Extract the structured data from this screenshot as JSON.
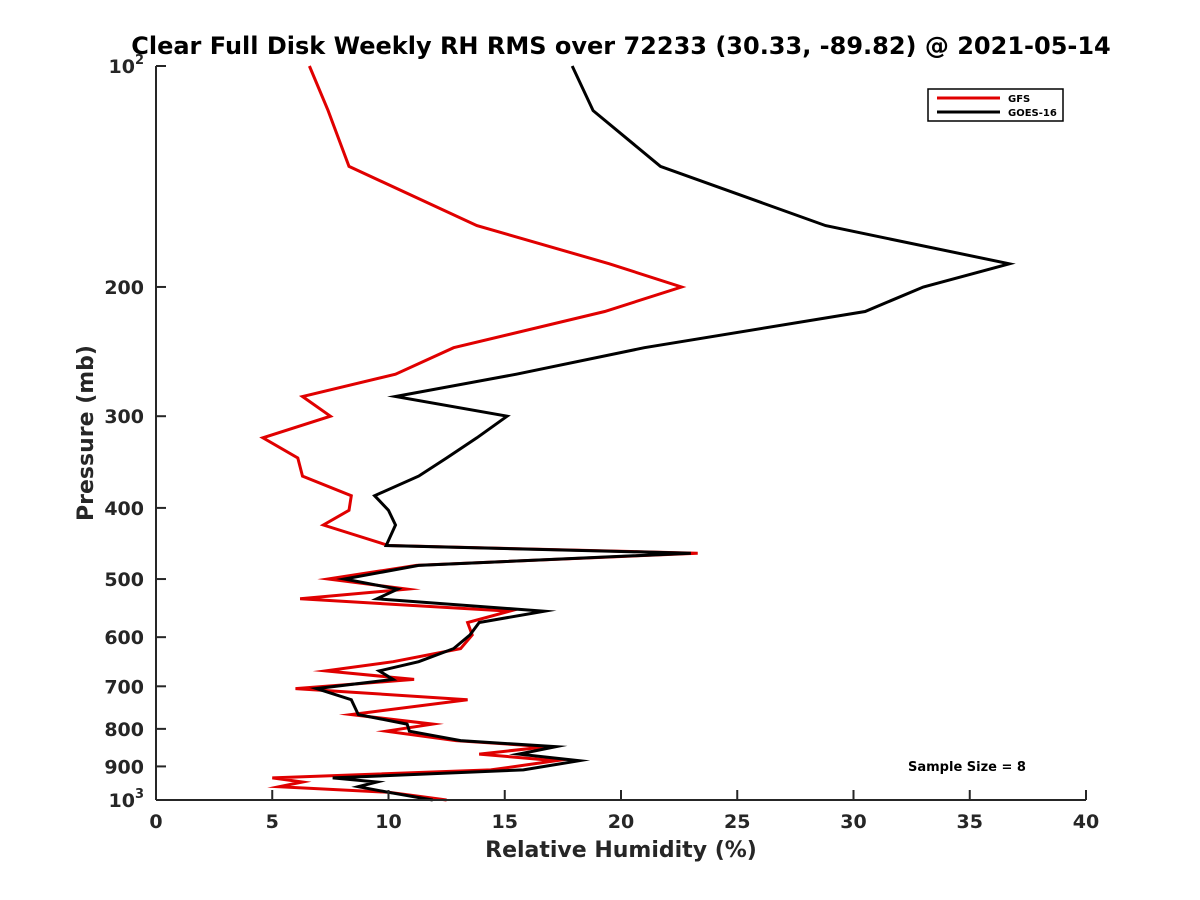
{
  "chart_data": {
    "type": "line",
    "title": "Clear Full Disk Weekly RH RMS over 72233 (30.33, -89.82) @ 2021-05-14",
    "xlabel": "Relative Humidity (%)",
    "ylabel": "Pressure (mb)",
    "xlim": [
      0,
      40
    ],
    "ylim": [
      100,
      1000
    ],
    "y_scale": "log",
    "y_reversed": true,
    "x_ticks": [
      0,
      5,
      10,
      15,
      20,
      25,
      30,
      35,
      40
    ],
    "y_ticks": [
      {
        "value": 100,
        "label": "10",
        "sup": "2"
      },
      {
        "value": 200,
        "label": "200"
      },
      {
        "value": 300,
        "label": "300"
      },
      {
        "value": 400,
        "label": "400"
      },
      {
        "value": 500,
        "label": "500"
      },
      {
        "value": 600,
        "label": "600"
      },
      {
        "value": 700,
        "label": "700"
      },
      {
        "value": 800,
        "label": "800"
      },
      {
        "value": 900,
        "label": "900"
      },
      {
        "value": 1000,
        "label": "10",
        "sup": "3"
      }
    ],
    "legend_position": "top-right",
    "annotation": "Sample Size = 8",
    "series": [
      {
        "name": "GFS",
        "color": "#e00000",
        "points": [
          [
            6.6,
            100
          ],
          [
            7.4,
            115
          ],
          [
            8.3,
            137
          ],
          [
            13.8,
            165
          ],
          [
            19.5,
            186
          ],
          [
            22.6,
            200
          ],
          [
            19.3,
            216
          ],
          [
            12.8,
            242
          ],
          [
            10.3,
            263
          ],
          [
            6.3,
            282
          ],
          [
            7.5,
            300
          ],
          [
            4.6,
            321
          ],
          [
            6.1,
            342
          ],
          [
            6.3,
            362
          ],
          [
            8.4,
            385
          ],
          [
            8.3,
            403
          ],
          [
            7.2,
            422
          ],
          [
            10.0,
            450
          ],
          [
            23.3,
            461
          ],
          [
            11.2,
            479
          ],
          [
            7.4,
            500
          ],
          [
            10.8,
            516
          ],
          [
            6.2,
            532
          ],
          [
            15.2,
            553
          ],
          [
            13.4,
            573
          ],
          [
            13.6,
            596
          ],
          [
            13.1,
            622
          ],
          [
            10.2,
            648
          ],
          [
            7.3,
            667
          ],
          [
            11.1,
            685
          ],
          [
            6.0,
            705
          ],
          [
            13.4,
            730
          ],
          [
            8.4,
            765
          ],
          [
            11.9,
            788
          ],
          [
            9.9,
            806
          ],
          [
            12.9,
            830
          ],
          [
            16.8,
            846
          ],
          [
            13.9,
            866
          ],
          [
            17.2,
            884
          ],
          [
            14.4,
            910
          ],
          [
            5.0,
            933
          ],
          [
            6.3,
            945
          ],
          [
            5.3,
            959
          ],
          [
            10.0,
            976
          ],
          [
            12.5,
            1000
          ]
        ]
      },
      {
        "name": "GOES-16",
        "color": "#000000",
        "points": [
          [
            17.9,
            100
          ],
          [
            18.8,
            115
          ],
          [
            21.7,
            137
          ],
          [
            28.8,
            165
          ],
          [
            36.7,
            186
          ],
          [
            33.0,
            200
          ],
          [
            30.5,
            216
          ],
          [
            21.0,
            242
          ],
          [
            15.5,
            263
          ],
          [
            10.3,
            282
          ],
          [
            15.1,
            300
          ],
          [
            13.8,
            321
          ],
          [
            12.5,
            342
          ],
          [
            11.3,
            362
          ],
          [
            9.4,
            385
          ],
          [
            10.0,
            403
          ],
          [
            10.3,
            422
          ],
          [
            9.9,
            450
          ],
          [
            23.0,
            461
          ],
          [
            11.3,
            479
          ],
          [
            8.1,
            500
          ],
          [
            10.4,
            516
          ],
          [
            9.5,
            532
          ],
          [
            16.7,
            553
          ],
          [
            13.9,
            573
          ],
          [
            13.5,
            596
          ],
          [
            12.8,
            622
          ],
          [
            11.3,
            648
          ],
          [
            9.6,
            667
          ],
          [
            10.2,
            685
          ],
          [
            6.9,
            705
          ],
          [
            8.4,
            730
          ],
          [
            8.7,
            765
          ],
          [
            10.8,
            788
          ],
          [
            10.9,
            806
          ],
          [
            13.1,
            830
          ],
          [
            17.2,
            846
          ],
          [
            15.6,
            866
          ],
          [
            18.2,
            884
          ],
          [
            15.8,
            910
          ],
          [
            7.6,
            933
          ],
          [
            9.5,
            945
          ],
          [
            8.7,
            959
          ],
          [
            10.0,
            976
          ],
          [
            11.9,
            1000
          ]
        ]
      }
    ]
  }
}
